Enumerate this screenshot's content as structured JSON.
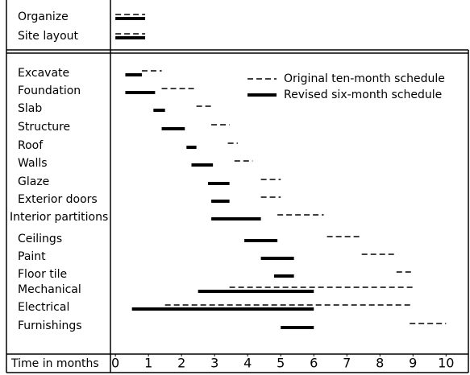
{
  "chart_data": {
    "type": "gantt",
    "categories": [
      "Organize",
      "Site layout",
      "Excavate",
      "Foundation",
      "Slab",
      "Structure",
      "Roof",
      "Walls",
      "Glaze",
      "Exterior doors",
      "Interior partitions",
      "Ceilings",
      "Paint",
      "Floor tile",
      "Mechanical",
      "Electrical",
      "Furnishings"
    ],
    "series": [
      {
        "name": "Original ten-month schedule",
        "color": "#000000",
        "dashed": true,
        "values": [
          [
            0,
            0.9
          ],
          [
            0,
            0.9
          ],
          [
            0.8,
            1.4
          ],
          [
            1.4,
            2.4
          ],
          [
            2.45,
            2.9
          ],
          [
            2.9,
            3.45
          ],
          [
            3.4,
            3.7
          ],
          [
            3.6,
            4.15
          ],
          [
            4.4,
            5.0
          ],
          [
            4.4,
            5.0
          ],
          [
            4.9,
            6.3
          ],
          [
            6.4,
            7.45
          ],
          [
            7.45,
            8.5
          ],
          [
            8.5,
            9.0
          ],
          [
            3.45,
            9.0
          ],
          [
            1.5,
            9.0
          ],
          [
            8.9,
            10.0
          ]
        ]
      },
      {
        "name": "Revised six-month schedule",
        "color": "#000000",
        "dashed": false,
        "values": [
          [
            0,
            0.9
          ],
          [
            0,
            0.9
          ],
          [
            0.3,
            0.8
          ],
          [
            0.3,
            1.2
          ],
          [
            1.15,
            1.5
          ],
          [
            1.4,
            2.1
          ],
          [
            2.15,
            2.45
          ],
          [
            2.3,
            2.95
          ],
          [
            2.8,
            3.45
          ],
          [
            2.9,
            3.45
          ],
          [
            2.9,
            4.4
          ],
          [
            3.9,
            4.9
          ],
          [
            4.4,
            5.4
          ],
          [
            4.8,
            5.4
          ],
          [
            2.5,
            6.0
          ],
          [
            0.5,
            6.0
          ],
          [
            5.0,
            6.0
          ]
        ]
      }
    ],
    "x_label": "Time in months",
    "xlim": [
      -0.15,
      10.7
    ],
    "xticks": [
      0,
      1,
      2,
      3,
      4,
      5,
      6,
      7,
      8,
      9,
      10
    ]
  }
}
